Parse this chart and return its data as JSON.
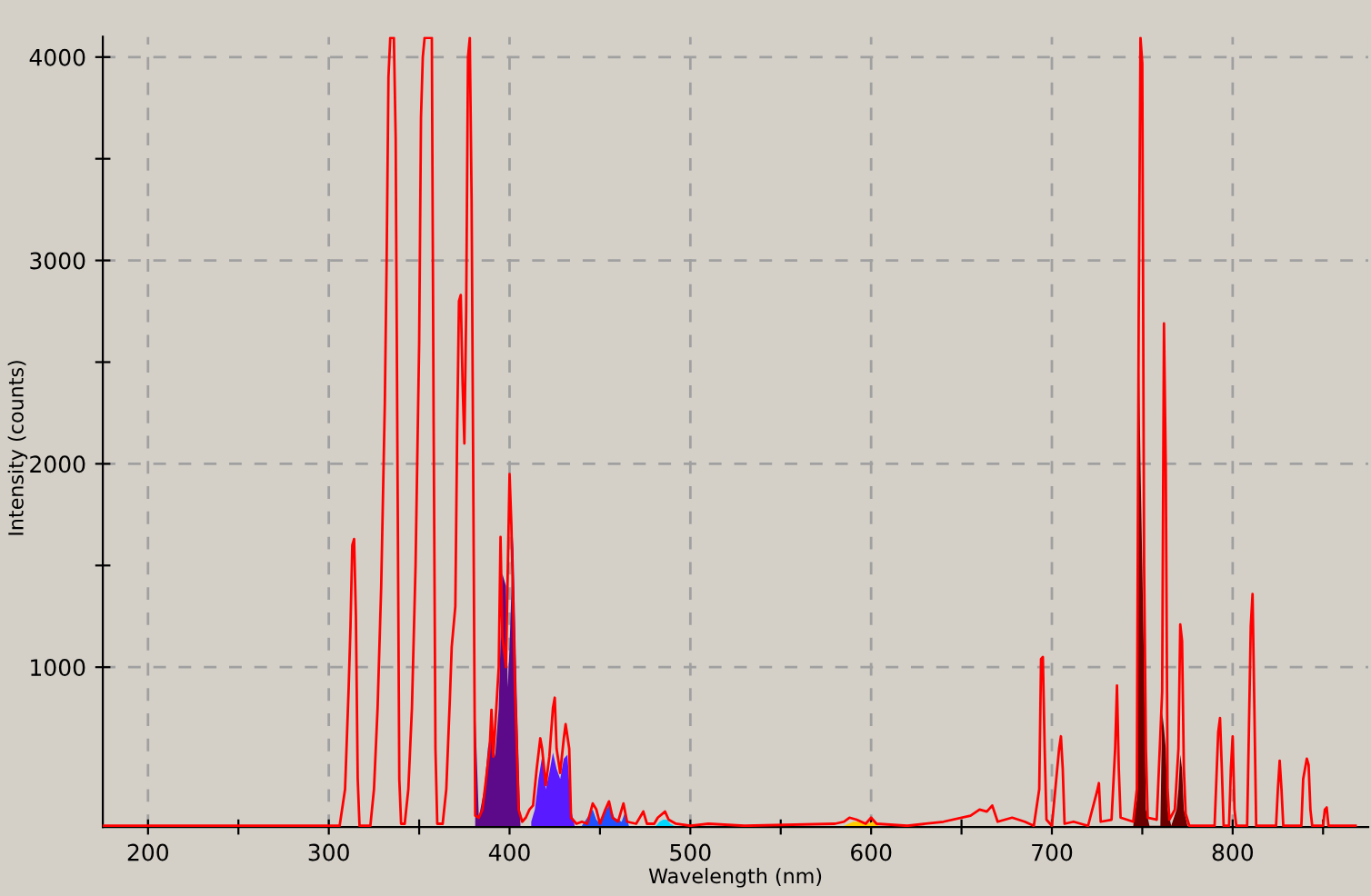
{
  "chart_data": {
    "type": "line",
    "xlabel": "Wavelength (nm)",
    "ylabel": "Intensity (counts)",
    "xlim": [
      175,
      875
    ],
    "ylim": [
      214,
      4100
    ],
    "xticks": [
      200,
      {
        "value": 250,
        "label": null
      },
      300,
      {
        "value": 350,
        "label": null
      },
      400,
      {
        "value": 450,
        "label": null
      },
      500,
      {
        "value": 550,
        "label": null
      },
      600,
      {
        "value": 650,
        "label": null
      },
      700,
      {
        "value": 750,
        "label": null
      },
      800,
      {
        "value": 850,
        "label": null
      }
    ],
    "yticks": [
      1000,
      {
        "value": 1500,
        "label": null
      },
      2000,
      {
        "value": 2500,
        "label": null
      },
      3000,
      {
        "value": 3500,
        "label": null
      },
      4000
    ],
    "grid": true,
    "line_style": "solid",
    "marker": "none",
    "series": [
      {
        "type": "area",
        "color": "#5c0a8a",
        "x": [
          381,
          383,
          386,
          388,
          390,
          392,
          394,
          396,
          398,
          399,
          400,
          402,
          404,
          406
        ],
        "values": [
          780,
          260,
          400,
          600,
          700,
          560,
          800,
          1460,
          1400,
          900,
          1100,
          1640,
          850,
          230
        ]
      },
      {
        "type": "area",
        "color": "#5a1aff",
        "x": [
          412,
          414,
          416,
          418,
          420,
          422,
          424,
          426,
          428,
          430,
          432,
          434,
          436
        ],
        "values": [
          240,
          300,
          450,
          560,
          400,
          480,
          580,
          500,
          450,
          550,
          570,
          300,
          220
        ]
      },
      {
        "type": "area",
        "color": "#1f4fff",
        "x": [
          440,
          443,
          446,
          448,
          450,
          453,
          455,
          458,
          462,
          464,
          466
        ],
        "values": [
          220,
          260,
          300,
          250,
          230,
          290,
          320,
          260,
          240,
          290,
          220
        ]
      },
      {
        "type": "area",
        "color": "#00d8ff",
        "x": [
          481,
          483,
          485,
          487,
          489,
          491
        ],
        "values": [
          220,
          240,
          250,
          250,
          230,
          220
        ]
      },
      {
        "type": "area",
        "color": "#ffcc00",
        "x": [
          585,
          590,
          594,
          598,
          601,
          604
        ],
        "values": [
          220,
          240,
          240,
          230,
          240,
          220
        ]
      },
      {
        "type": "area",
        "color": "#6a0000",
        "x": [
          745,
          747,
          748,
          749,
          750,
          751,
          752,
          754,
          760,
          761,
          762,
          763,
          764,
          766,
          769,
          770,
          771,
          772,
          773,
          775
        ],
        "values": [
          220,
          350,
          2630,
          2000,
          1500,
          1000,
          300,
          220,
          220,
          780,
          700,
          600,
          300,
          220,
          300,
          400,
          570,
          500,
          300,
          220
        ]
      },
      {
        "color": "#ff0000",
        "x": [
          175,
          300,
          306,
          309,
          311,
          312,
          313,
          314,
          315,
          316,
          317,
          323,
          325,
          327,
          329,
          331,
          332,
          333,
          334,
          336,
          337,
          338,
          339,
          340,
          342,
          344,
          346,
          348,
          350,
          351,
          352,
          353,
          357,
          358,
          359,
          360,
          363,
          365,
          367,
          368,
          370,
          371,
          372,
          373,
          374,
          375,
          376,
          377,
          378,
          379,
          380,
          381,
          383,
          385,
          387,
          389,
          390,
          391,
          392,
          394,
          395,
          396,
          398,
          400,
          401,
          403,
          405,
          407,
          409,
          411,
          413,
          415,
          417,
          418,
          420,
          422,
          424,
          425,
          426,
          428,
          430,
          431,
          433,
          434,
          437,
          440,
          443,
          446,
          448,
          450,
          453,
          455,
          457,
          460,
          463,
          465,
          470,
          474,
          476,
          480,
          482,
          486,
          488,
          492,
          500,
          510,
          530,
          580,
          585,
          588,
          592,
          597,
          600,
          603,
          620,
          640,
          655,
          660,
          664,
          667,
          670,
          678,
          685,
          690,
          693,
          694,
          695,
          696,
          697,
          700,
          704,
          705,
          706,
          707,
          712,
          720,
          725,
          726,
          727,
          733,
          735,
          736,
          737,
          738,
          745,
          747,
          748,
          749,
          750,
          751,
          752,
          753,
          758,
          761,
          762,
          763,
          764,
          765,
          768,
          770,
          771,
          772,
          773,
          774,
          776,
          790,
          792,
          793,
          794,
          795,
          798,
          799,
          800,
          801,
          802,
          808,
          809,
          810,
          811,
          812,
          813,
          824,
          825,
          826,
          827,
          828,
          838,
          839,
          841,
          842,
          843,
          844,
          850,
          851,
          852,
          853,
          868
        ],
        "values": [
          220,
          220,
          220,
          400,
          900,
          1200,
          1600,
          1630,
          1250,
          450,
          220,
          220,
          400,
          800,
          1400,
          2300,
          3000,
          3900,
          4095,
          4095,
          3600,
          2000,
          450,
          230,
          230,
          400,
          800,
          1500,
          2600,
          3700,
          4000,
          4095,
          4095,
          2200,
          600,
          230,
          230,
          400,
          850,
          1100,
          1300,
          2150,
          2800,
          2830,
          2400,
          2100,
          2750,
          4000,
          4095,
          3300,
          1800,
          270,
          260,
          300,
          450,
          600,
          790,
          560,
          700,
          1000,
          1640,
          1150,
          1000,
          1950,
          1700,
          900,
          300,
          240,
          260,
          300,
          320,
          500,
          650,
          600,
          420,
          560,
          800,
          850,
          600,
          480,
          650,
          720,
          600,
          260,
          230,
          240,
          230,
          330,
          300,
          230,
          300,
          340,
          260,
          240,
          330,
          240,
          230,
          290,
          230,
          230,
          260,
          290,
          250,
          230,
          220,
          230,
          220,
          230,
          240,
          260,
          250,
          230,
          260,
          230,
          220,
          240,
          270,
          300,
          290,
          320,
          240,
          260,
          240,
          220,
          400,
          1040,
          1050,
          600,
          250,
          220,
          600,
          660,
          500,
          230,
          240,
          220,
          390,
          430,
          240,
          250,
          600,
          910,
          500,
          260,
          240,
          400,
          2700,
          4095,
          3970,
          1500,
          600,
          260,
          250,
          880,
          2690,
          1980,
          400,
          250,
          300,
          600,
          1210,
          1130,
          500,
          280,
          220,
          220,
          680,
          750,
          500,
          220,
          220,
          500,
          660,
          300,
          220,
          220,
          700,
          1200,
          1360,
          800,
          220,
          220,
          400,
          540,
          400,
          220,
          220,
          450,
          550,
          520,
          300,
          220,
          220,
          300,
          310,
          220,
          220
        ]
      }
    ]
  }
}
